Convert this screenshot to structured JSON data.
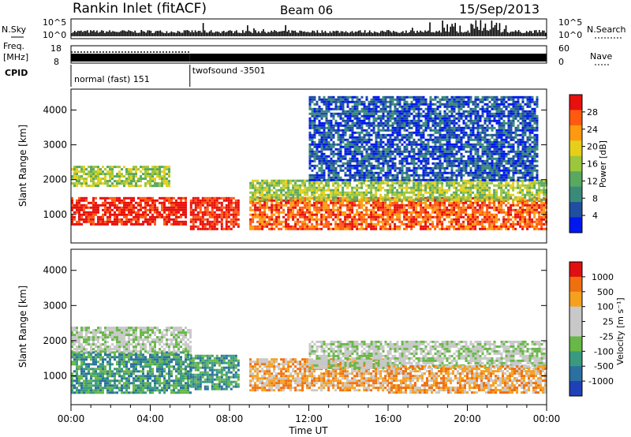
{
  "header": {
    "station": "Rankin Inlet (fitACF)",
    "beam": "Beam 06",
    "date": "15/Sep/2013"
  },
  "top_panels": {
    "nsky_label": "N.Sky",
    "nsearch_label": "N.Search",
    "nsky_ticks": [
      "10^5",
      "10^0"
    ],
    "nsearch_ticks": [
      "10^5",
      "10^0"
    ],
    "freq_label_line1": "Freq.",
    "freq_label_line2": "[MHz]",
    "freq_ticks": [
      "18",
      "8"
    ],
    "nave_label": "Nave",
    "nave_ticks": [
      "60",
      "0"
    ],
    "cpid_label": "CPID",
    "cpid_segments": [
      {
        "label": "normal (fast) 151",
        "start_hour": 0,
        "end_hour": 6
      },
      {
        "label": "twofsound -3501",
        "start_hour": 6,
        "end_hour": 24
      }
    ]
  },
  "time_axis": {
    "label": "Time UT",
    "ticks": [
      "00:00",
      "04:00",
      "08:00",
      "12:00",
      "16:00",
      "20:00",
      "00:00"
    ]
  },
  "chart_data": [
    {
      "type": "heatmap",
      "quantity": "power",
      "ylabel": "Slant Range [km]",
      "yticks": [
        1000,
        2000,
        3000,
        4000
      ],
      "ylim": [
        180,
        4600
      ],
      "xlim_hours": [
        0,
        24
      ],
      "colorbar_label": "Power [dB]",
      "colorbar_ticks": [
        "28",
        "24",
        "20",
        "16",
        "12",
        "8",
        "4"
      ],
      "colors": [
        "#0018f0",
        "#1f4fa0",
        "#3a8a7a",
        "#59a860",
        "#9cc63b",
        "#e6cf1a",
        "#ff9a10",
        "#ff5a10",
        "#e8100c"
      ],
      "regions": [
        {
          "hours": [
            0,
            5.8
          ],
          "ranges_km": [
            700,
            1500
          ],
          "level": 8
        },
        {
          "hours": [
            0,
            5.0
          ],
          "ranges_km": [
            1800,
            2400
          ],
          "level": 4
        },
        {
          "hours": [
            6.0,
            8.5
          ],
          "ranges_km": [
            600,
            1500
          ],
          "level": 8
        },
        {
          "hours": [
            9.0,
            24.0
          ],
          "ranges_km": [
            600,
            1500
          ],
          "level": 7
        },
        {
          "hours": [
            9.0,
            24.0
          ],
          "ranges_km": [
            1400,
            2000
          ],
          "level": 4
        },
        {
          "hours": [
            12.0,
            23.5
          ],
          "ranges_km": [
            2000,
            4400
          ],
          "level": 1
        }
      ]
    },
    {
      "type": "heatmap",
      "quantity": "velocity",
      "ylabel": "Slant Range [km]",
      "yticks": [
        1000,
        2000,
        3000,
        4000
      ],
      "ylim": [
        180,
        4600
      ],
      "xlim_hours": [
        0,
        24
      ],
      "colorbar_label": "Velocity [m s⁻¹]",
      "colorbar_ticks": [
        "1000",
        "500",
        "100",
        "25",
        "-25",
        "-100",
        "-500",
        "-1000"
      ],
      "colors": [
        "#2040b8",
        "#2a70a0",
        "#3a9a80",
        "#68b848",
        "#c8c8c8",
        "#c8c8c8",
        "#f6a020",
        "#f07010",
        "#e01010"
      ],
      "regions": [
        {
          "hours": [
            0,
            6.0
          ],
          "ranges_km": [
            500,
            1700
          ],
          "level": 2
        },
        {
          "hours": [
            0,
            6.0
          ],
          "ranges_km": [
            1700,
            2400
          ],
          "level": 4
        },
        {
          "hours": [
            6.0,
            8.5
          ],
          "ranges_km": [
            600,
            1600
          ],
          "level": 2
        },
        {
          "hours": [
            9.0,
            16.0
          ],
          "ranges_km": [
            600,
            1500
          ],
          "level": 6
        },
        {
          "hours": [
            12.0,
            24.0
          ],
          "ranges_km": [
            1200,
            2000
          ],
          "level": 4
        },
        {
          "hours": [
            16.0,
            24.0
          ],
          "ranges_km": [
            500,
            1300
          ],
          "level": 6
        }
      ]
    }
  ]
}
